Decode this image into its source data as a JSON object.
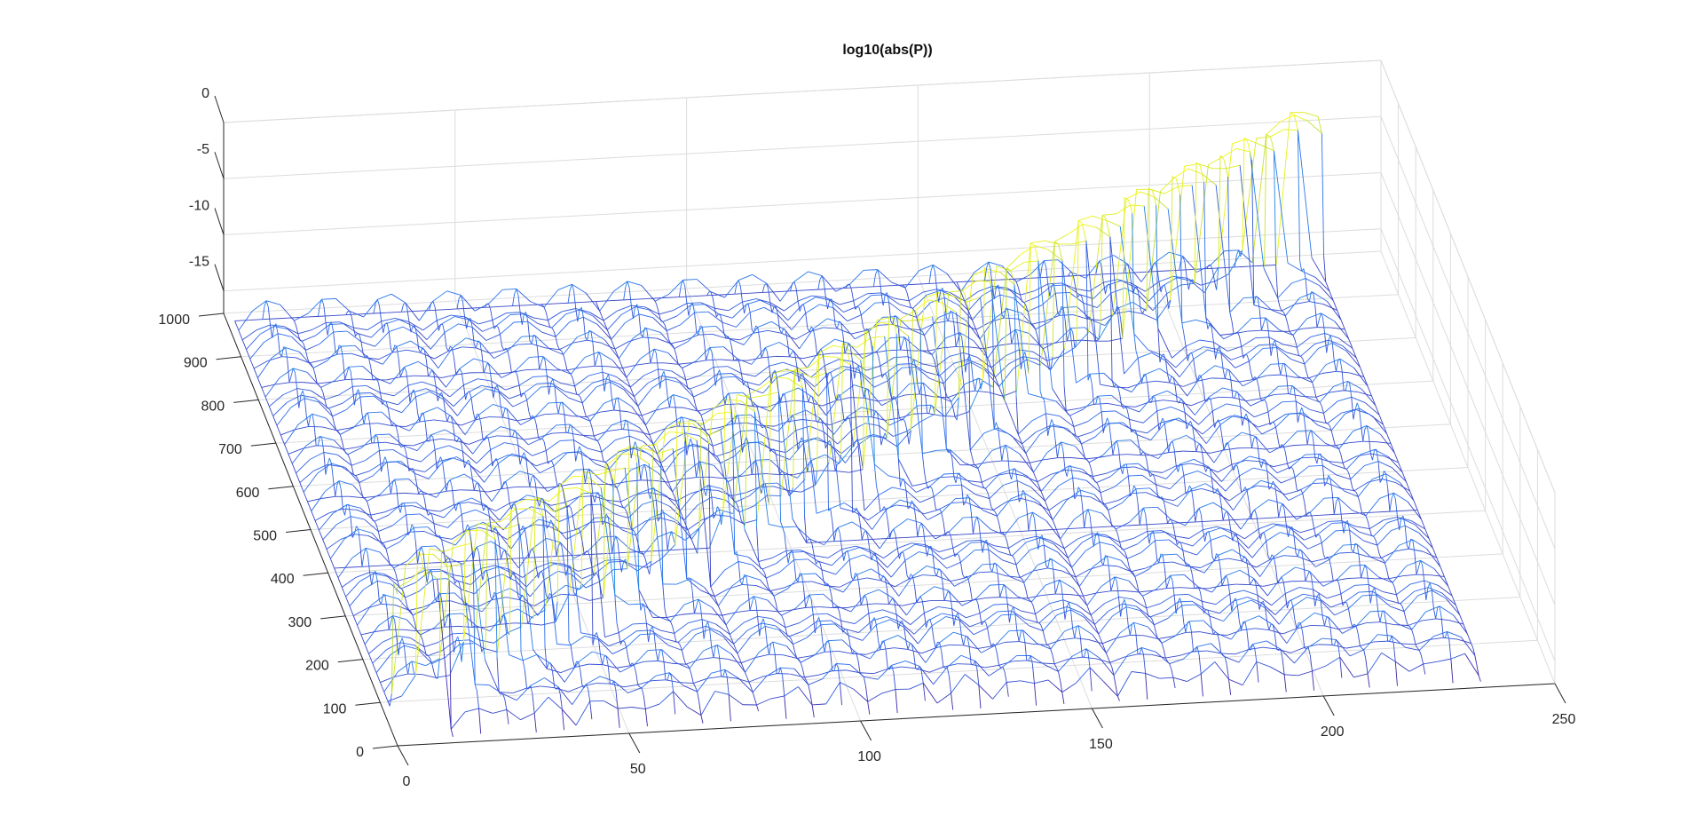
{
  "figure": {
    "background": "#ffffff"
  },
  "chart_data": {
    "type": "surface-mesh",
    "title": "log10(abs(P))",
    "xlabel": "",
    "ylabel": "",
    "zlabel": "",
    "x_ticks": [
      "0",
      "50",
      "100",
      "150",
      "200",
      "250"
    ],
    "y_ticks": [
      "0",
      "100",
      "200",
      "300",
      "400",
      "500",
      "600",
      "700",
      "800",
      "900",
      "1000"
    ],
    "z_ticks": [
      "-15",
      "-10",
      "-5",
      "0"
    ],
    "xlim": [
      0,
      250
    ],
    "ylim": [
      0,
      1000
    ],
    "zlim": [
      -17,
      0
    ],
    "grid": true,
    "colormap": [
      "#3e26a8",
      "#2c6ef0",
      "#16a8d0",
      "#2ebd9a",
      "#9bcb46",
      "#f9fb0e"
    ],
    "surface": {
      "description_values": "mostly flat, around -13; banded diagonal ridge along x≈y/4",
      "background_level": -13,
      "ridge_level": -1,
      "min_level": -16.5,
      "block_size_x": 13,
      "block_size_y": 52,
      "x_extent": [
        0,
        234
      ],
      "y_extent": [
        0,
        936
      ]
    }
  }
}
